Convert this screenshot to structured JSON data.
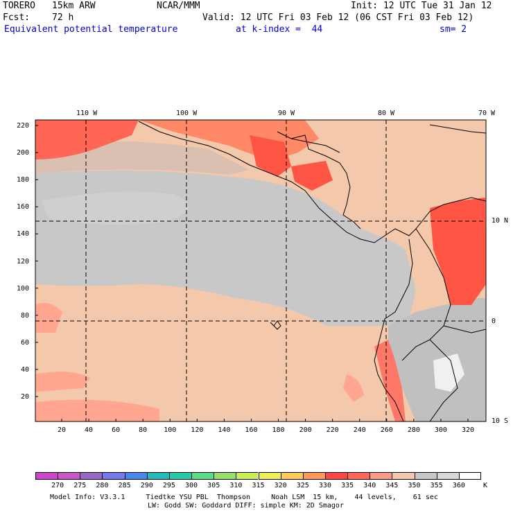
{
  "header": {
    "model": "TORERO",
    "resolution": "15km ARW",
    "org": "NCAR/MMM",
    "init": "Init: 12 UTC Tue 31 Jan 12",
    "fcst_label": "Fcst:",
    "fcst_value": "72 h",
    "valid": "Valid: 12 UTC Fri 03 Feb 12 (06 CST Fri 03 Feb 12)",
    "field": "Equivalent potential temperature",
    "level": "at k-index =  44",
    "smooth": "sm= 2"
  },
  "map": {
    "top_lon_labels": [
      "110 W",
      "100 W",
      "90 W",
      "80 W",
      "70 W"
    ],
    "right_lat_labels": [
      "10 N",
      "0",
      "10 S"
    ],
    "y_ticks": [
      "220",
      "200",
      "180",
      "160",
      "140",
      "120",
      "100",
      "80",
      "60",
      "40",
      "20"
    ],
    "x_ticks": [
      "20",
      "40",
      "60",
      "80",
      "100",
      "120",
      "140",
      "160",
      "180",
      "200",
      "220",
      "240",
      "260",
      "280",
      "300",
      "320"
    ]
  },
  "colorbar": {
    "unit": "K",
    "levels": [
      "270",
      "275",
      "280",
      "285",
      "290",
      "295",
      "300",
      "305",
      "310",
      "315",
      "320",
      "325",
      "330",
      "335",
      "340",
      "345",
      "350",
      "355",
      "360"
    ],
    "colors": [
      "#cc55cc",
      "#9966cc",
      "#7777ee",
      "#4488ee",
      "#22bbbb",
      "#22ccaa",
      "#55dd88",
      "#99e066",
      "#ccee55",
      "#eeee55",
      "#ffcc55",
      "#ff9955",
      "#ff4444",
      "#ff6655",
      "#ff9988",
      "#f4c8aa",
      "#c8c8c8",
      "#d8d8d8",
      "#ffffff"
    ]
  },
  "footer": {
    "line1": "Model Info: V3.3.1     Tiedtke YSU PBL  Thompson     Noah LSM  15 km,    44 levels,    61 sec",
    "line2": "LW: Godd SW: Goddard DIFF: simple KM: 2D Smagor"
  }
}
